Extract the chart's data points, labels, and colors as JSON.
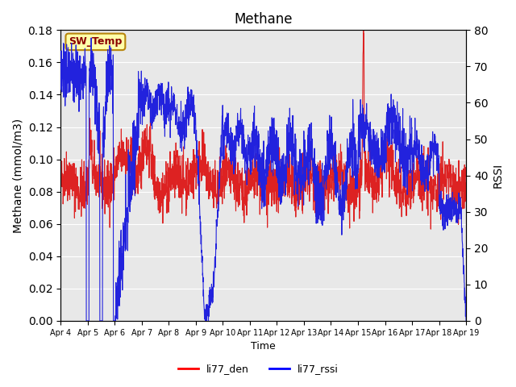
{
  "title": "Methane",
  "xlabel": "Time",
  "ylabel_left": "Methane (mmol/m3)",
  "ylabel_right": "RSSI",
  "ylim_left": [
    0.0,
    0.18
  ],
  "ylim_right": [
    0,
    80
  ],
  "yticks_left": [
    0.0,
    0.02,
    0.04,
    0.06,
    0.08,
    0.1,
    0.12,
    0.14,
    0.16,
    0.18
  ],
  "yticks_right": [
    0,
    10,
    20,
    30,
    40,
    50,
    60,
    70,
    80
  ],
  "bg_color": "#e8e8e8",
  "fig_color": "#ffffff",
  "legend_labels": [
    "li77_den",
    "li77_rssi"
  ],
  "legend_colors": [
    "red",
    "blue"
  ],
  "sw_temp_label": "SW_Temp",
  "sw_temp_color": "#8B0000",
  "sw_temp_bg": "#FFFFAA",
  "sw_temp_border": "#B8860B",
  "x_tick_labels": [
    "Apr 4",
    "Apr 5",
    "Apr 6",
    "Apr 7",
    "Apr 8",
    "Apr 9",
    "Apr 10",
    "Apr 11",
    "Apr 12",
    "Apr 13",
    "Apr 14",
    "Apr 15",
    "Apr 16",
    "Apr 17",
    "Apr 18",
    "Apr 19"
  ],
  "line_red_color": "#dd2222",
  "line_blue_color": "#2222dd"
}
